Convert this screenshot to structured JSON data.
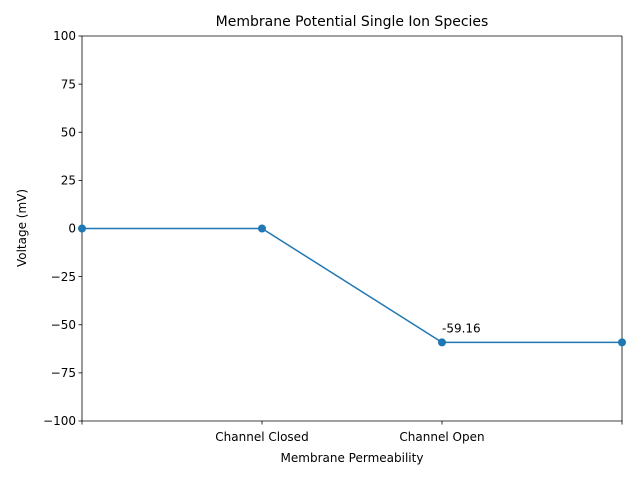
{
  "chart_data": {
    "type": "line",
    "title": "Membrane Potential Single Ion Species",
    "xlabel": "Membrane Permeability",
    "ylabel": "Voltage (mV)",
    "x": [
      0,
      1,
      2,
      3
    ],
    "xlim": [
      0,
      3
    ],
    "xticks": [
      {
        "value": 0,
        "label": ""
      },
      {
        "value": 1,
        "label": "Channel Closed"
      },
      {
        "value": 2,
        "label": "Channel Open"
      },
      {
        "value": 3,
        "label": ""
      }
    ],
    "ylim": [
      -100,
      100
    ],
    "yticks": [
      {
        "value": 100,
        "label": "100"
      },
      {
        "value": 75,
        "label": "75"
      },
      {
        "value": 50,
        "label": "50"
      },
      {
        "value": 25,
        "label": "25"
      },
      {
        "value": 0,
        "label": "0"
      },
      {
        "value": -25,
        "label": "−25"
      },
      {
        "value": -50,
        "label": "−50"
      },
      {
        "value": -75,
        "label": "−75"
      },
      {
        "value": -100,
        "label": "−100"
      }
    ],
    "grid": false,
    "series": [
      {
        "values": [
          0,
          0,
          -59.16,
          -59.16
        ],
        "color": "#1f77b4",
        "marker": "circle"
      }
    ],
    "annotations": [
      {
        "x": 2,
        "y": -59.16,
        "text": "-59.16"
      }
    ]
  }
}
